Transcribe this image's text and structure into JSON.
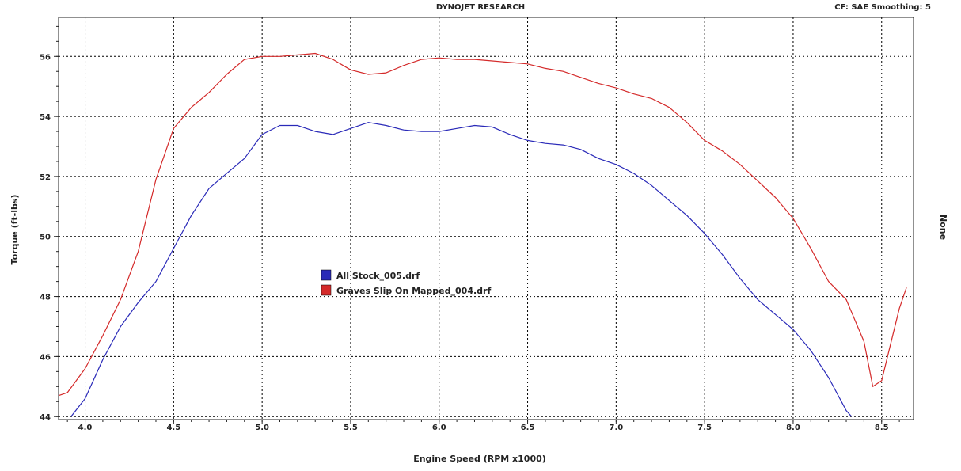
{
  "header": {
    "title": "DYNOJET RESEARCH",
    "correction": "CF: SAE  Smoothing: 5"
  },
  "chart_data": {
    "type": "line",
    "xlabel": "Engine Speed (RPM x1000)",
    "ylabel": "Torque (ft-lbs)",
    "y2label": "None",
    "xlim": [
      3.85,
      8.68
    ],
    "ylim": [
      43.9,
      57.3
    ],
    "xticks": [
      "4.0",
      "4.5",
      "5.0",
      "5.5",
      "6.0",
      "6.5",
      "7.0",
      "7.5",
      "8.0",
      "8.5"
    ],
    "yticks": [
      "44",
      "46",
      "48",
      "50",
      "52",
      "54",
      "56"
    ],
    "grid": true,
    "legend_placement": "center-left",
    "series": [
      {
        "name": "All Stock_005.drf",
        "color": "#2a2ab8",
        "points": [
          [
            3.92,
            44.0
          ],
          [
            4.0,
            44.6
          ],
          [
            4.1,
            45.9
          ],
          [
            4.2,
            47.0
          ],
          [
            4.3,
            47.8
          ],
          [
            4.4,
            48.5
          ],
          [
            4.5,
            49.6
          ],
          [
            4.6,
            50.7
          ],
          [
            4.7,
            51.6
          ],
          [
            4.8,
            52.1
          ],
          [
            4.9,
            52.6
          ],
          [
            5.0,
            53.4
          ],
          [
            5.1,
            53.7
          ],
          [
            5.2,
            53.7
          ],
          [
            5.3,
            53.5
          ],
          [
            5.4,
            53.4
          ],
          [
            5.5,
            53.6
          ],
          [
            5.6,
            53.8
          ],
          [
            5.7,
            53.7
          ],
          [
            5.8,
            53.55
          ],
          [
            5.9,
            53.5
          ],
          [
            6.0,
            53.5
          ],
          [
            6.1,
            53.6
          ],
          [
            6.2,
            53.7
          ],
          [
            6.3,
            53.65
          ],
          [
            6.4,
            53.4
          ],
          [
            6.5,
            53.2
          ],
          [
            6.6,
            53.1
          ],
          [
            6.7,
            53.05
          ],
          [
            6.8,
            52.9
          ],
          [
            6.9,
            52.6
          ],
          [
            7.0,
            52.4
          ],
          [
            7.1,
            52.1
          ],
          [
            7.2,
            51.7
          ],
          [
            7.3,
            51.2
          ],
          [
            7.4,
            50.7
          ],
          [
            7.5,
            50.1
          ],
          [
            7.6,
            49.4
          ],
          [
            7.7,
            48.6
          ],
          [
            7.8,
            47.9
          ],
          [
            7.9,
            47.4
          ],
          [
            8.0,
            46.9
          ],
          [
            8.1,
            46.2
          ],
          [
            8.2,
            45.3
          ],
          [
            8.3,
            44.2
          ],
          [
            8.33,
            44.0
          ]
        ]
      },
      {
        "name": "Graves Slip On Mapped_004.drf",
        "color": "#d42a2a",
        "points": [
          [
            3.85,
            44.7
          ],
          [
            3.9,
            44.8
          ],
          [
            4.0,
            45.6
          ],
          [
            4.1,
            46.7
          ],
          [
            4.2,
            47.9
          ],
          [
            4.3,
            49.5
          ],
          [
            4.4,
            51.9
          ],
          [
            4.5,
            53.6
          ],
          [
            4.6,
            54.3
          ],
          [
            4.7,
            54.8
          ],
          [
            4.8,
            55.4
          ],
          [
            4.9,
            55.9
          ],
          [
            5.0,
            56.0
          ],
          [
            5.1,
            56.0
          ],
          [
            5.2,
            56.05
          ],
          [
            5.3,
            56.1
          ],
          [
            5.4,
            55.9
          ],
          [
            5.5,
            55.55
          ],
          [
            5.6,
            55.4
          ],
          [
            5.7,
            55.45
          ],
          [
            5.8,
            55.7
          ],
          [
            5.9,
            55.9
          ],
          [
            6.0,
            55.95
          ],
          [
            6.1,
            55.9
          ],
          [
            6.2,
            55.9
          ],
          [
            6.3,
            55.85
          ],
          [
            6.4,
            55.8
          ],
          [
            6.5,
            55.75
          ],
          [
            6.6,
            55.6
          ],
          [
            6.7,
            55.5
          ],
          [
            6.8,
            55.3
          ],
          [
            6.9,
            55.1
          ],
          [
            7.0,
            54.95
          ],
          [
            7.1,
            54.75
          ],
          [
            7.2,
            54.6
          ],
          [
            7.3,
            54.3
          ],
          [
            7.4,
            53.8
          ],
          [
            7.5,
            53.2
          ],
          [
            7.6,
            52.85
          ],
          [
            7.7,
            52.4
          ],
          [
            7.8,
            51.85
          ],
          [
            7.9,
            51.3
          ],
          [
            8.0,
            50.6
          ],
          [
            8.1,
            49.6
          ],
          [
            8.2,
            48.5
          ],
          [
            8.3,
            47.9
          ],
          [
            8.4,
            46.5
          ],
          [
            8.45,
            45.0
          ],
          [
            8.5,
            45.2
          ],
          [
            8.55,
            46.4
          ],
          [
            8.6,
            47.6
          ],
          [
            8.64,
            48.3
          ]
        ]
      }
    ]
  }
}
